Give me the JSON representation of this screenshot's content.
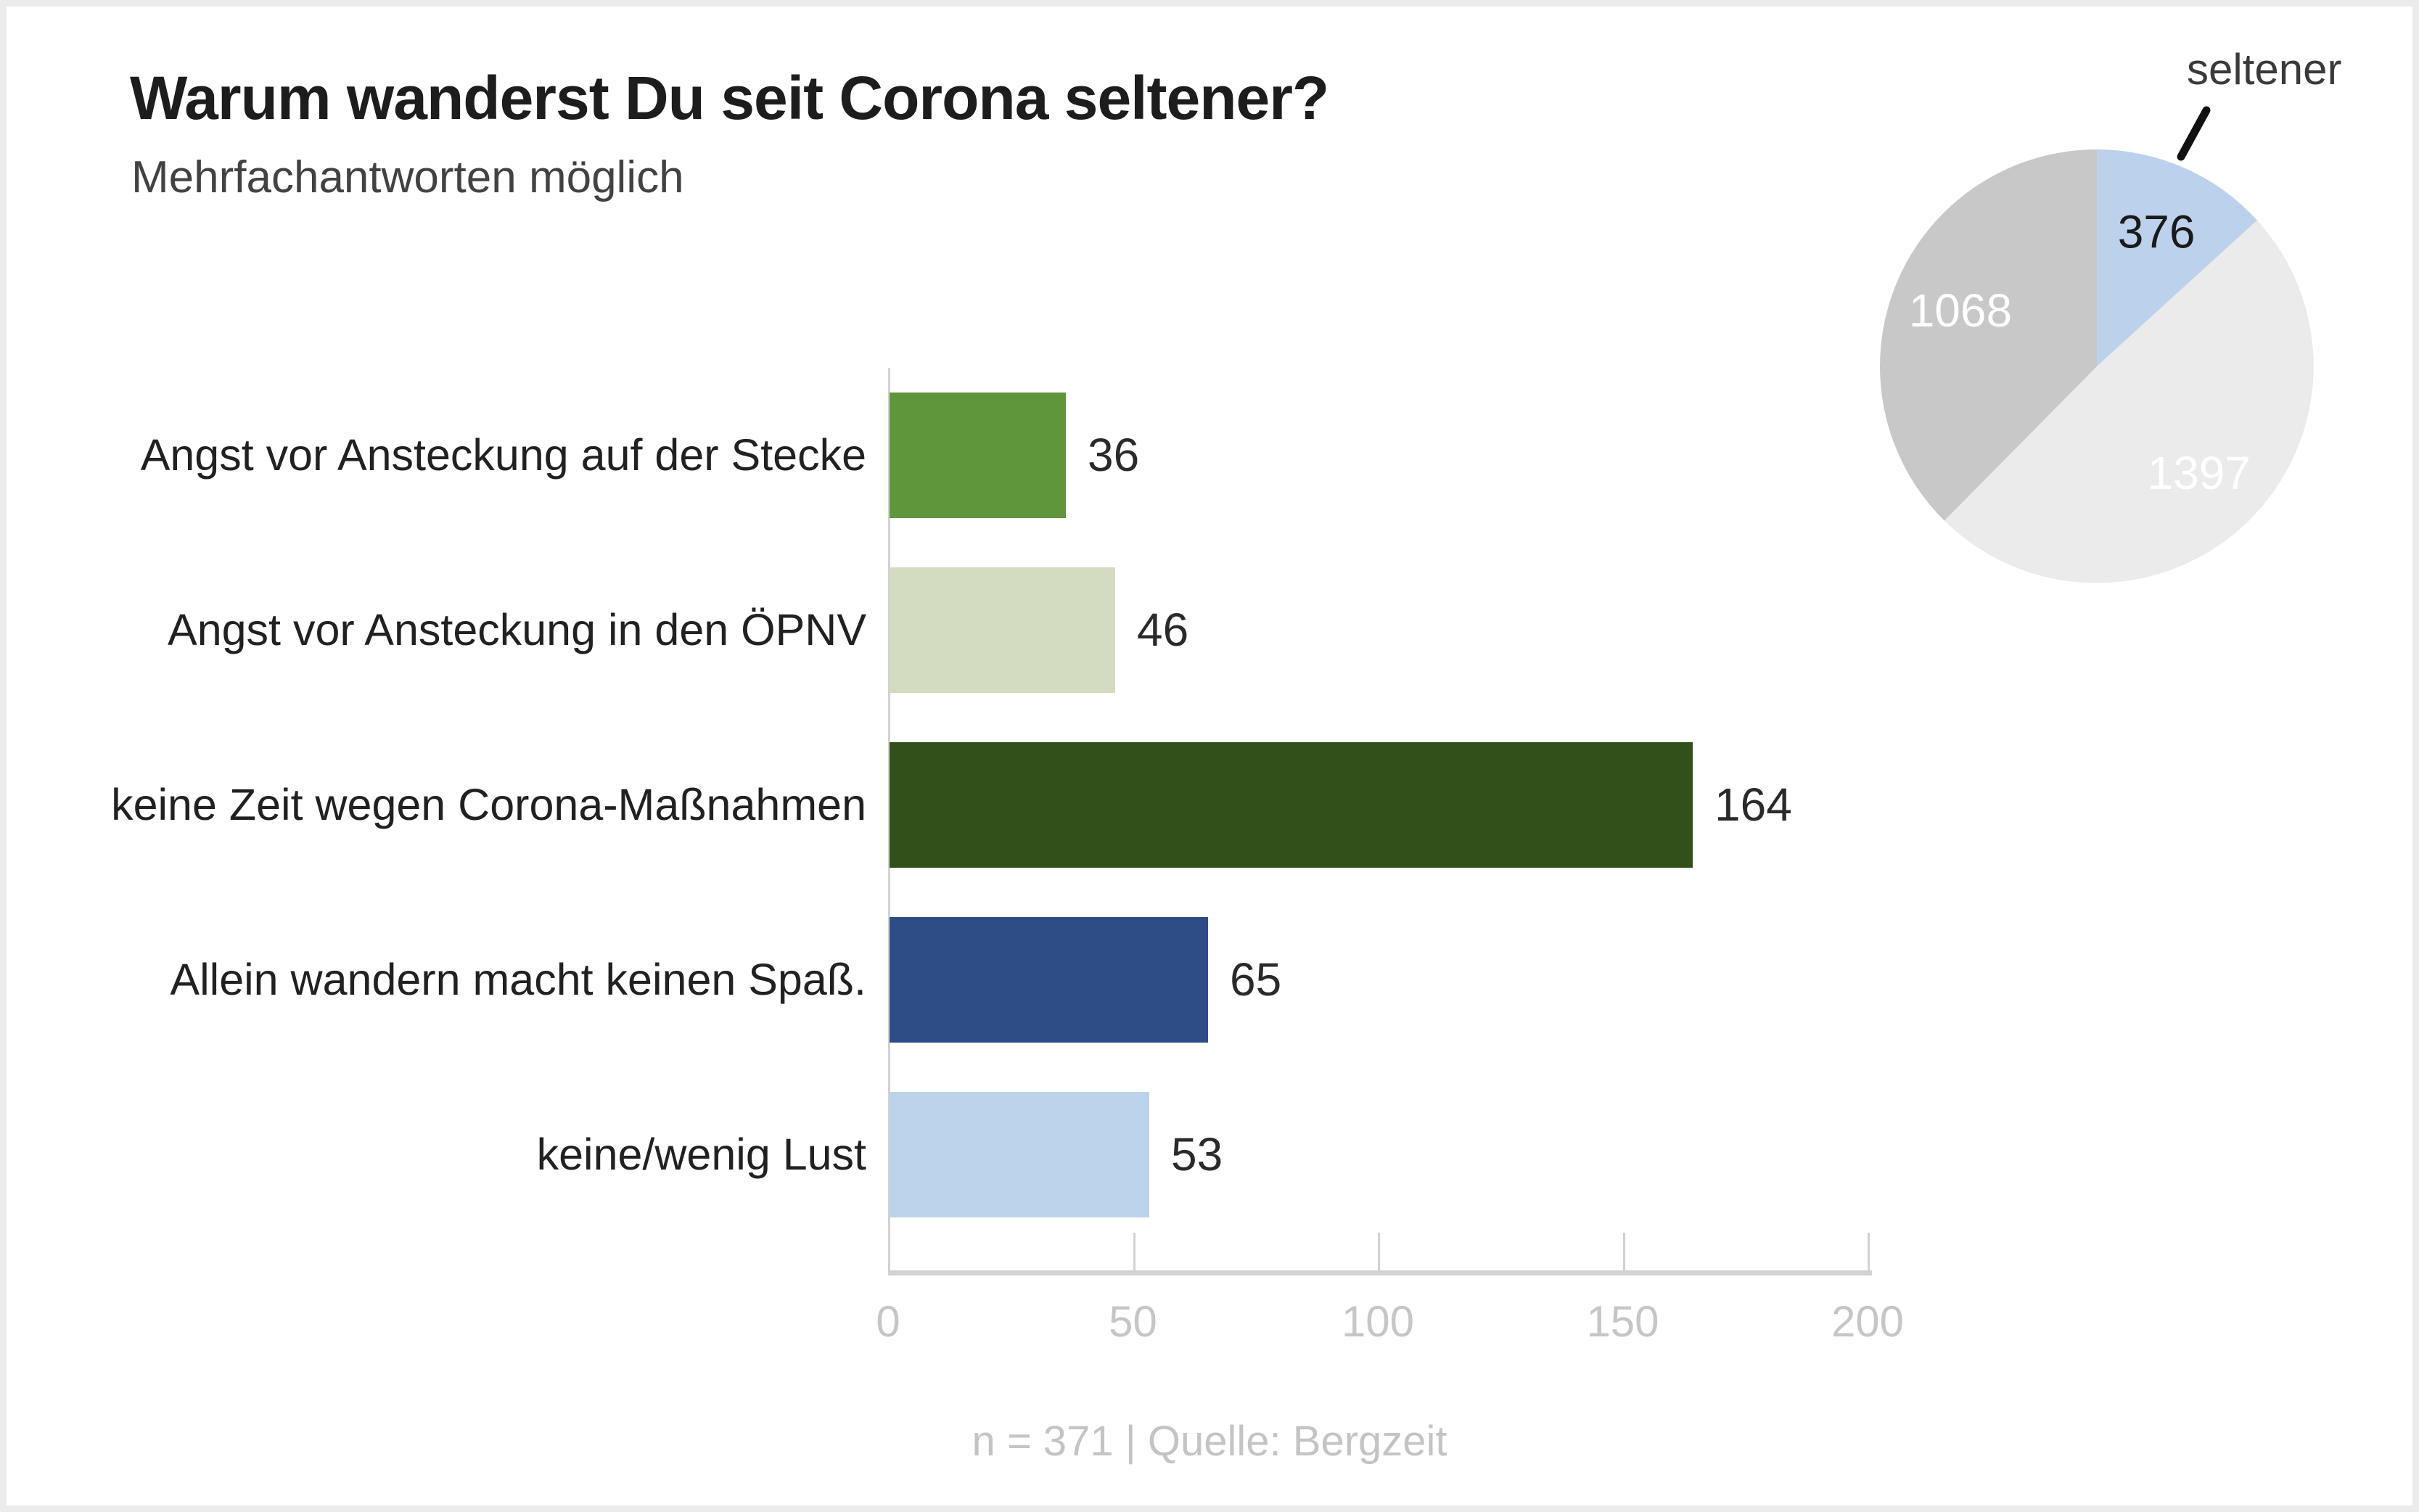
{
  "header": {
    "title": "Warum wanderst Du seit Corona seltener?",
    "subtitle": "Mehrfachantworten möglich"
  },
  "footer": {
    "note": "n = 371 | Quelle: Bergzeit"
  },
  "colors": {
    "background": "#ffffff",
    "canvas_border": "#ebebeb",
    "title": "#1d1d1d",
    "subtitle": "#424242",
    "axis": "#d2d2d2",
    "tick_label": "#c6c6c6",
    "category_label": "#212121",
    "value_label": "#2a2a2a",
    "annotation": "#3a3a3a",
    "footer": "#c4c4c4"
  },
  "chart_data": [
    {
      "type": "bar",
      "orientation": "horizontal",
      "title": "Warum wanderst Du seit Corona seltener?",
      "subtitle": "Mehrfachantworten möglich",
      "categories": [
        "Angst vor Ansteckung auf der Stecke",
        "Angst vor Ansteckung in den ÖPNV",
        "keine Zeit wegen Corona-Maßnahmen",
        "Allein wandern macht keinen Spaß.",
        "keine/wenig Lust"
      ],
      "values": [
        36,
        46,
        164,
        65,
        53
      ],
      "bar_colors": [
        "#5f963c",
        "#d3dcc0",
        "#32501a",
        "#2e4d86",
        "#bdd3eb"
      ],
      "value_labels": true,
      "xlabel": "",
      "ylabel": "",
      "xlim": [
        0,
        200
      ],
      "xticks": [
        0,
        50,
        100,
        150,
        200
      ],
      "grid": false,
      "legend": false,
      "source_note": "n = 371 | Quelle: Bergzeit"
    },
    {
      "type": "pie",
      "values": [
        376,
        1397,
        1068
      ],
      "slice_labels": [
        "seltener",
        "",
        ""
      ],
      "slice_colors": [
        "#bcd2ec",
        "#ebebeb",
        "#c8c8c8"
      ],
      "value_label_colors": [
        "#1a1a1a",
        "#ffffff",
        "#ffffff"
      ],
      "annotation": "seltener",
      "start_angle": "12 o'clock, clockwise",
      "legend": false
    }
  ]
}
